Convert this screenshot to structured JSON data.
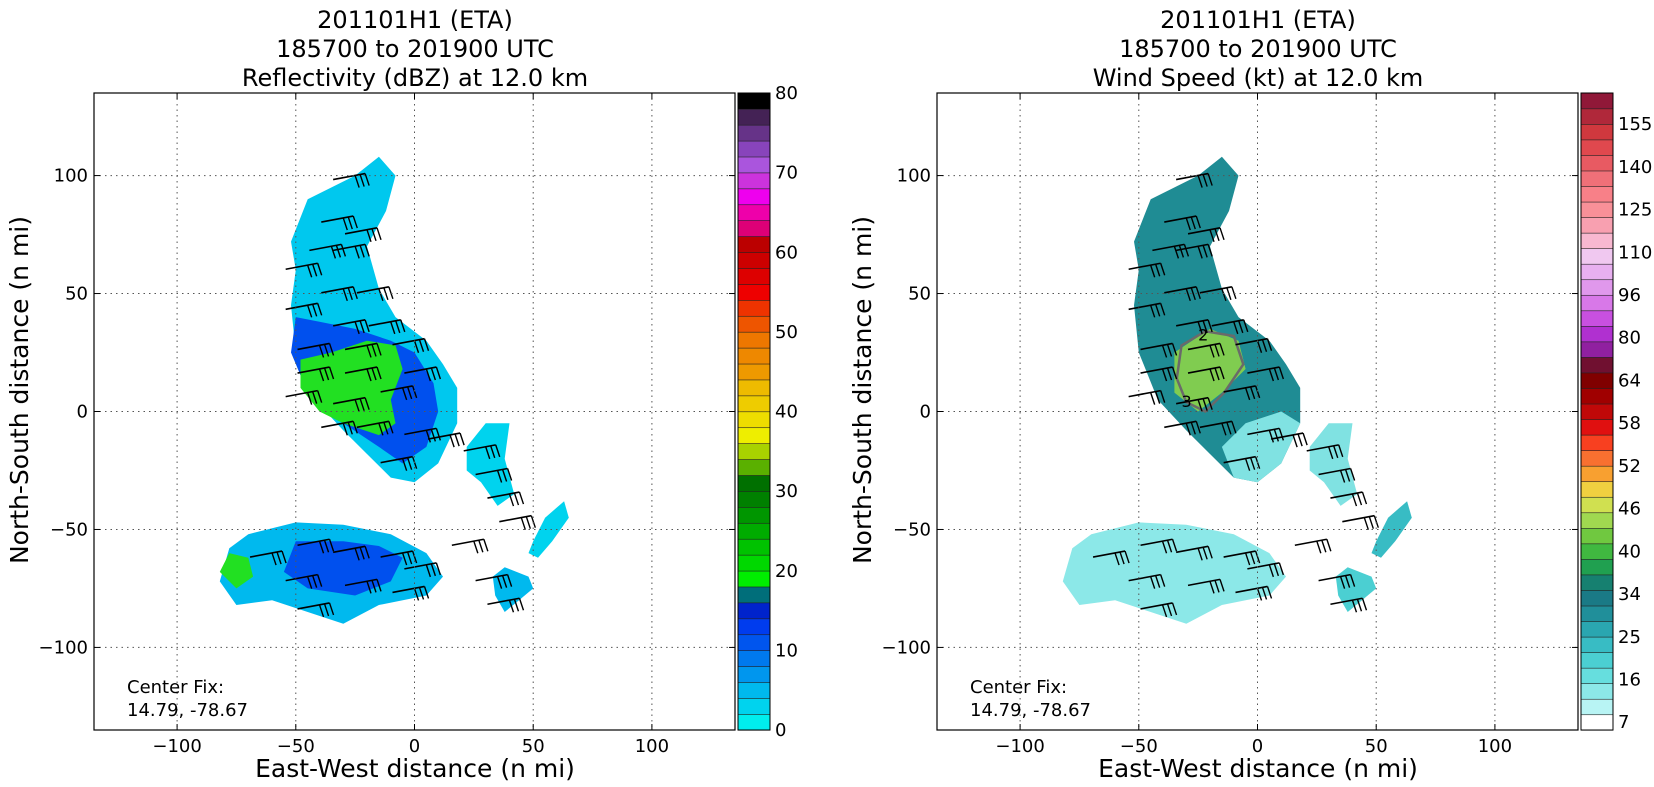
{
  "chart_data": [
    {
      "type": "heatmap",
      "title_lines": [
        "201101H1 (ETA)",
        "185700 to 201900 UTC",
        "Reflectivity (dBZ) at 12.0 km"
      ],
      "xlabel": "East-West distance (n mi)",
      "ylabel": "North-South distance (n mi)",
      "xlim": [
        -135,
        135
      ],
      "ylim": [
        -135,
        135
      ],
      "xticks": [
        -100,
        -50,
        0,
        50,
        100
      ],
      "yticks": [
        -100,
        -50,
        0,
        50,
        100
      ],
      "grid": true,
      "annotation": [
        "Center Fix:",
        "14.79, -78.67"
      ],
      "colorbar": {
        "min": 0,
        "max": 80,
        "tick_labels": [
          "0",
          "10",
          "20",
          "30",
          "40",
          "50",
          "60",
          "70",
          "80"
        ],
        "colors": [
          "#00eeee",
          "#00d3ee",
          "#00b9ee",
          "#0096ee",
          "#0079ee",
          "#0055ee",
          "#003cee",
          "#0023cc",
          "#006e7a",
          "#00ee00",
          "#00d800",
          "#00c200",
          "#00ac00",
          "#009600",
          "#008000",
          "#007000",
          "#5ab000",
          "#a8d200",
          "#eeee00",
          "#eedd00",
          "#eecc00",
          "#eebb00",
          "#ee9900",
          "#ee8800",
          "#ee7700",
          "#ee5500",
          "#ee3300",
          "#ee0000",
          "#dd0000",
          "#cc0000",
          "#bb0000",
          "#dd0077",
          "#ee00aa",
          "#ee00ee",
          "#cc33dd",
          "#aa55dd",
          "#8844bb",
          "#663388",
          "#442255",
          "#000000"
        ]
      },
      "regions": [
        {
          "name": "main-band",
          "color": "#00c8ee",
          "points": [
            [
              -52,
              72
            ],
            [
              -45,
              90
            ],
            [
              -25,
              100
            ],
            [
              -15,
              108
            ],
            [
              -8,
              100
            ],
            [
              -12,
              85
            ],
            [
              -20,
              70
            ],
            [
              -15,
              52
            ],
            [
              -8,
              40
            ],
            [
              5,
              30
            ],
            [
              12,
              20
            ],
            [
              18,
              10
            ],
            [
              18,
              -5
            ],
            [
              10,
              -22
            ],
            [
              0,
              -30
            ],
            [
              -10,
              -28
            ],
            [
              -20,
              -18
            ],
            [
              -30,
              -8
            ],
            [
              -42,
              5
            ],
            [
              -50,
              25
            ],
            [
              -52,
              45
            ],
            [
              -50,
              60
            ]
          ]
        },
        {
          "name": "main-core",
          "color": "#0050ee",
          "points": [
            [
              -50,
              40
            ],
            [
              -40,
              38
            ],
            [
              -25,
              35
            ],
            [
              -10,
              30
            ],
            [
              0,
              25
            ],
            [
              8,
              12
            ],
            [
              10,
              0
            ],
            [
              5,
              -15
            ],
            [
              -5,
              -22
            ],
            [
              -15,
              -15
            ],
            [
              -30,
              -5
            ],
            [
              -45,
              8
            ],
            [
              -52,
              25
            ]
          ]
        },
        {
          "name": "main-green",
          "color": "#22e022",
          "points": [
            [
              -48,
              22
            ],
            [
              -35,
              25
            ],
            [
              -20,
              30
            ],
            [
              -8,
              28
            ],
            [
              -5,
              18
            ],
            [
              -10,
              5
            ],
            [
              -8,
              -5
            ],
            [
              -15,
              -10
            ],
            [
              -30,
              -5
            ],
            [
              -40,
              0
            ],
            [
              -48,
              10
            ]
          ]
        },
        {
          "name": "right-cell",
          "color": "#00d3ee",
          "points": [
            [
              22,
              -15
            ],
            [
              30,
              -5
            ],
            [
              40,
              -5
            ],
            [
              38,
              -20
            ],
            [
              42,
              -35
            ],
            [
              35,
              -40
            ],
            [
              28,
              -30
            ],
            [
              22,
              -25
            ]
          ]
        },
        {
          "name": "far-right-cell",
          "color": "#00d3ee",
          "points": [
            [
              50,
              -55
            ],
            [
              55,
              -45
            ],
            [
              63,
              -38
            ],
            [
              65,
              -45
            ],
            [
              58,
              -55
            ],
            [
              52,
              -62
            ],
            [
              48,
              -60
            ]
          ]
        },
        {
          "name": "small-right",
          "color": "#00b9ee",
          "points": [
            [
              33,
              -70
            ],
            [
              38,
              -66
            ],
            [
              48,
              -70
            ],
            [
              50,
              -75
            ],
            [
              44,
              -80
            ],
            [
              38,
              -85
            ],
            [
              34,
              -78
            ]
          ]
        },
        {
          "name": "south-band",
          "color": "#00b9ee",
          "points": [
            [
              -78,
              -58
            ],
            [
              -70,
              -52
            ],
            [
              -50,
              -47
            ],
            [
              -30,
              -48
            ],
            [
              -10,
              -52
            ],
            [
              5,
              -60
            ],
            [
              12,
              -70
            ],
            [
              5,
              -78
            ],
            [
              -15,
              -82
            ],
            [
              -30,
              -90
            ],
            [
              -45,
              -85
            ],
            [
              -60,
              -80
            ],
            [
              -75,
              -82
            ],
            [
              -82,
              -72
            ]
          ]
        },
        {
          "name": "south-core",
          "color": "#0050ee",
          "points": [
            [
              -50,
              -55
            ],
            [
              -30,
              -55
            ],
            [
              -15,
              -57
            ],
            [
              -5,
              -62
            ],
            [
              -10,
              -72
            ],
            [
              -25,
              -78
            ],
            [
              -45,
              -75
            ],
            [
              -55,
              -68
            ]
          ]
        },
        {
          "name": "south-green",
          "color": "#22e022",
          "points": [
            [
              -78,
              -60
            ],
            [
              -70,
              -62
            ],
            [
              -68,
              -70
            ],
            [
              -75,
              -75
            ],
            [
              -82,
              -68
            ]
          ]
        }
      ]
    },
    {
      "type": "heatmap",
      "title_lines": [
        "201101H1 (ETA)",
        "185700 to 201900 UTC",
        "Wind Speed (kt) at 12.0 km"
      ],
      "xlabel": "East-West distance (n mi)",
      "ylabel": "North-South distance (n mi)",
      "xlim": [
        -135,
        135
      ],
      "ylim": [
        -135,
        135
      ],
      "xticks": [
        -100,
        -50,
        0,
        50,
        100
      ],
      "yticks": [
        -100,
        -50,
        0,
        50,
        100
      ],
      "grid": true,
      "annotation": [
        "Center Fix:",
        "14.79, -78.67"
      ],
      "contour_labels": [
        "2",
        "3"
      ],
      "colorbar": {
        "min": 7,
        "max": 160,
        "tick_labels": [
          "7",
          "16",
          "25",
          "34",
          "40",
          "46",
          "52",
          "58",
          "64",
          "80",
          "96",
          "110",
          "125",
          "140",
          "155"
        ],
        "colors": [
          "#ffffff",
          "#b8f4f4",
          "#8ce8e8",
          "#66dede",
          "#4bcfd2",
          "#38bcc4",
          "#2aa6b0",
          "#208f9a",
          "#1a7a86",
          "#168070",
          "#20a050",
          "#40b840",
          "#70c840",
          "#a0d850",
          "#d0e050",
          "#f0d040",
          "#f8a030",
          "#f87030",
          "#f84020",
          "#e01010",
          "#c00808",
          "#a00000",
          "#800000",
          "#701030",
          "#9020a0",
          "#b030d0",
          "#c850e0",
          "#d878e8",
          "#e098ec",
          "#e8b0f0",
          "#f0c8f0",
          "#f8b8d0",
          "#f8a0b0",
          "#f89098",
          "#f88088",
          "#f07078",
          "#e85a62",
          "#e0484e",
          "#d0383e",
          "#b0283a",
          "#901838"
        ]
      },
      "regions": [
        {
          "name": "main-band",
          "color": "#1f8c94",
          "points": [
            [
              -52,
              72
            ],
            [
              -45,
              90
            ],
            [
              -25,
              100
            ],
            [
              -15,
              108
            ],
            [
              -8,
              100
            ],
            [
              -12,
              85
            ],
            [
              -20,
              70
            ],
            [
              -15,
              52
            ],
            [
              -8,
              40
            ],
            [
              5,
              30
            ],
            [
              12,
              20
            ],
            [
              18,
              10
            ],
            [
              18,
              -5
            ],
            [
              10,
              -22
            ],
            [
              0,
              -30
            ],
            [
              -10,
              -28
            ],
            [
              -20,
              -18
            ],
            [
              -30,
              -8
            ],
            [
              -42,
              5
            ],
            [
              -50,
              25
            ],
            [
              -52,
              45
            ],
            [
              -50,
              60
            ]
          ]
        },
        {
          "name": "main-light",
          "color": "#80e2e2",
          "points": [
            [
              -5,
              -5
            ],
            [
              10,
              0
            ],
            [
              18,
              -5
            ],
            [
              10,
              -22
            ],
            [
              0,
              -30
            ],
            [
              -10,
              -28
            ],
            [
              -15,
              -15
            ]
          ]
        },
        {
          "name": "main-green",
          "color": "#80cc50",
          "points": [
            [
              -35,
              25
            ],
            [
              -20,
              35
            ],
            [
              -8,
              30
            ],
            [
              -5,
              18
            ],
            [
              -15,
              8
            ],
            [
              -25,
              0
            ],
            [
              -35,
              8
            ]
          ]
        },
        {
          "name": "right-cell",
          "color": "#80e2e2",
          "points": [
            [
              22,
              -15
            ],
            [
              30,
              -5
            ],
            [
              40,
              -5
            ],
            [
              38,
              -20
            ],
            [
              42,
              -35
            ],
            [
              35,
              -40
            ],
            [
              28,
              -30
            ],
            [
              22,
              -25
            ]
          ]
        },
        {
          "name": "far-right-cell",
          "color": "#38bcc4",
          "points": [
            [
              50,
              -55
            ],
            [
              55,
              -45
            ],
            [
              63,
              -38
            ],
            [
              65,
              -45
            ],
            [
              58,
              -55
            ],
            [
              52,
              -62
            ],
            [
              48,
              -60
            ]
          ]
        },
        {
          "name": "small-right",
          "color": "#4bcfd2",
          "points": [
            [
              33,
              -70
            ],
            [
              38,
              -66
            ],
            [
              48,
              -70
            ],
            [
              50,
              -75
            ],
            [
              44,
              -80
            ],
            [
              38,
              -85
            ],
            [
              34,
              -78
            ]
          ]
        },
        {
          "name": "south-band",
          "color": "#8ce8e8",
          "points": [
            [
              -78,
              -58
            ],
            [
              -70,
              -52
            ],
            [
              -50,
              -47
            ],
            [
              -30,
              -48
            ],
            [
              -10,
              -52
            ],
            [
              5,
              -60
            ],
            [
              12,
              -70
            ],
            [
              5,
              -78
            ],
            [
              -15,
              -82
            ],
            [
              -30,
              -90
            ],
            [
              -45,
              -85
            ],
            [
              -60,
              -80
            ],
            [
              -75,
              -82
            ],
            [
              -82,
              -72
            ]
          ]
        }
      ]
    }
  ],
  "wind_barbs": [
    [
      -25,
      100
    ],
    [
      -30,
      82
    ],
    [
      -20,
      77
    ],
    [
      -35,
      70
    ],
    [
      -25,
      70
    ],
    [
      -45,
      62
    ],
    [
      -30,
      52
    ],
    [
      -15,
      52
    ],
    [
      -45,
      45
    ],
    [
      -25,
      38
    ],
    [
      -10,
      38
    ],
    [
      -40,
      28
    ],
    [
      -20,
      28
    ],
    [
      0,
      30
    ],
    [
      -40,
      18
    ],
    [
      -20,
      18
    ],
    [
      5,
      18
    ],
    [
      -45,
      8
    ],
    [
      -25,
      5
    ],
    [
      -5,
      10
    ],
    [
      -30,
      -5
    ],
    [
      -15,
      -5
    ],
    [
      5,
      -8
    ],
    [
      15,
      -10
    ],
    [
      -5,
      -20
    ],
    [
      30,
      -15
    ],
    [
      35,
      -25
    ],
    [
      40,
      -35
    ],
    [
      45,
      -45
    ],
    [
      -60,
      -60
    ],
    [
      -40,
      -55
    ],
    [
      -25,
      -58
    ],
    [
      -5,
      -60
    ],
    [
      5,
      -65
    ],
    [
      -45,
      -70
    ],
    [
      -20,
      -72
    ],
    [
      0,
      -75
    ],
    [
      -40,
      -82
    ],
    [
      25,
      -55
    ],
    [
      35,
      -70
    ],
    [
      40,
      -80
    ]
  ]
}
